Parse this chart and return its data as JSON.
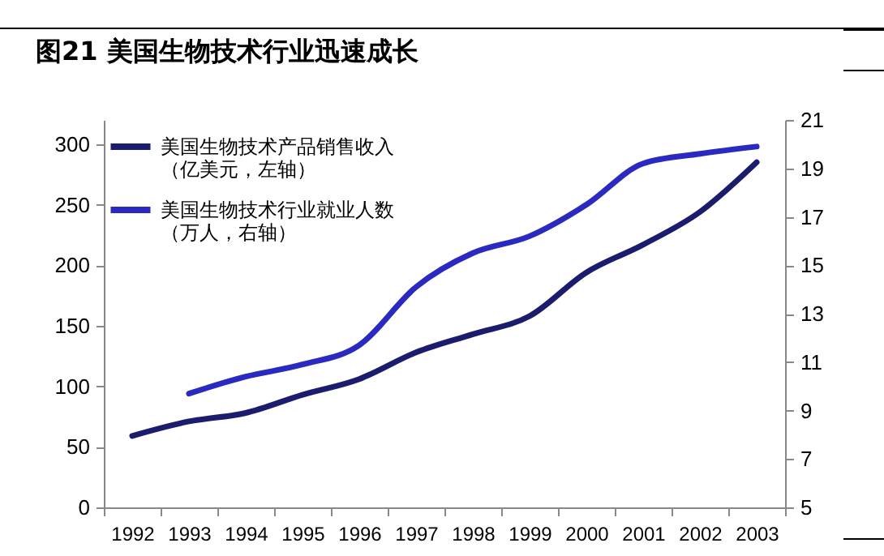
{
  "chart_data": {
    "type": "line",
    "title": "图21 美国生物技术行业迅速成长",
    "categories": [
      "1992",
      "1993",
      "1994",
      "1995",
      "1996",
      "1997",
      "1998",
      "1999",
      "2000",
      "2001",
      "2002",
      "2003"
    ],
    "series": [
      {
        "name": "美国生物技术产品销售收入（亿美元，左轴）",
        "color": "#1c1c6e",
        "values": [
          59,
          71,
          78,
          93,
          106,
          128,
          143,
          158,
          194,
          217,
          244,
          285
        ]
      },
      {
        "name": "美国生物技术行业就业人数（万人，右轴）",
        "color": "#2a2ac0",
        "axis": "y2",
        "values": [
          null,
          9.7,
          10.4,
          10.9,
          11.7,
          14.1,
          15.5,
          16.2,
          17.5,
          19.2,
          19.6,
          19.9
        ]
      }
    ],
    "ylim": [
      0,
      320
    ],
    "yticks": [
      0,
      50,
      100,
      150,
      200,
      250,
      300
    ],
    "y2lim": [
      5,
      21
    ],
    "y2ticks": [
      5,
      7,
      9,
      11,
      13,
      15,
      17,
      19,
      21
    ],
    "legend": "top left",
    "marker": "none",
    "line_style": "solid",
    "grid": false
  }
}
